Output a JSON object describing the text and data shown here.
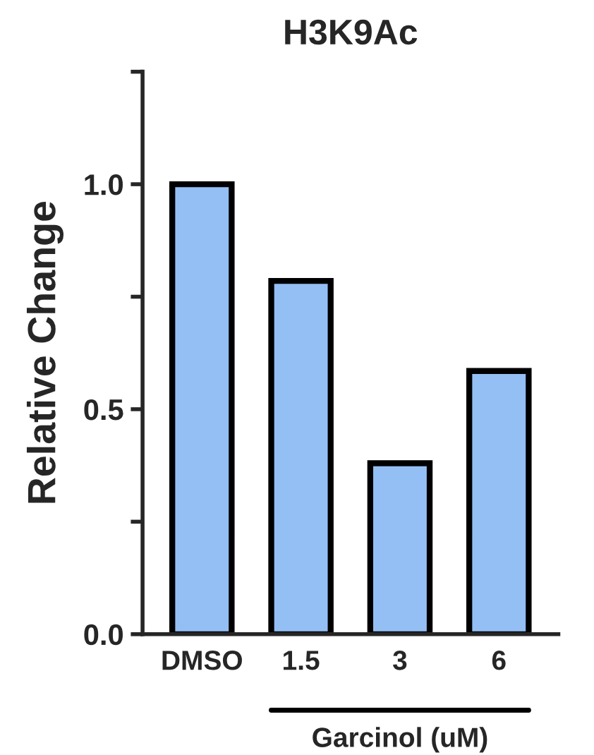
{
  "chart_data": {
    "type": "bar",
    "title": "H3K9Ac",
    "ylabel": "Relative Change",
    "categories": [
      "DMSO",
      "1.5",
      "3",
      "6"
    ],
    "values": [
      1.0,
      0.785,
      0.38,
      0.585
    ],
    "color": "#94bff5",
    "ylim": [
      0,
      1.25
    ],
    "yticks": [
      {
        "value": 0,
        "label": "0.0"
      },
      {
        "value": 0.25,
        "label": null
      },
      {
        "value": 0.5,
        "label": "0.5"
      },
      {
        "value": 0.75,
        "label": null
      },
      {
        "value": 1.0,
        "label": "1.0"
      },
      {
        "value": 1.25,
        "label": null
      }
    ],
    "annotations": [
      "Garcinol (uM)"
    ],
    "grid": false,
    "legend": false
  }
}
